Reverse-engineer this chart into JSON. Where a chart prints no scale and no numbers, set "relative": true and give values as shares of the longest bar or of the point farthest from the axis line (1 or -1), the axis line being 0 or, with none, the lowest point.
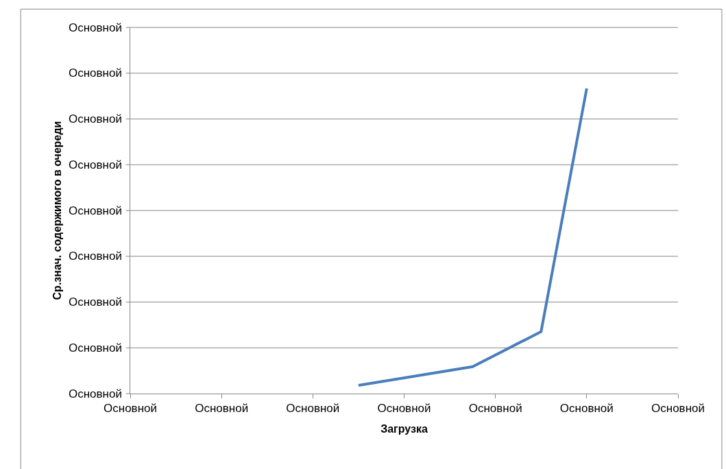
{
  "chart_data": {
    "type": "line",
    "xlabel": "Загрузка",
    "ylabel": "Ср.знач. содержимого в очереди",
    "relative": true,
    "categories": [
      "Основной",
      null,
      null,
      null,
      "Основной",
      null,
      null,
      null,
      "Основной",
      null,
      null,
      null,
      "Основной",
      null,
      null,
      null,
      "Основной",
      null,
      null,
      null,
      "Основной",
      null,
      null,
      null,
      "Основной"
    ],
    "series": [
      {
        "color": "#4a7ebb",
        "values": [
          null,
          null,
          null,
          null,
          null,
          null,
          null,
          null,
          null,
          null,
          0.027,
          null,
          null,
          null,
          null,
          0.088,
          null,
          null,
          0.203,
          null,
          1,
          null,
          null,
          null,
          null
        ]
      }
    ],
    "annotations": [
      "Основной",
      "Основной",
      "Основной",
      "Основной",
      "Основной",
      "Основной",
      "Основной",
      "Основной",
      "Основной"
    ],
    "grid": "y",
    "marker": "none",
    "line_style": "solid"
  }
}
